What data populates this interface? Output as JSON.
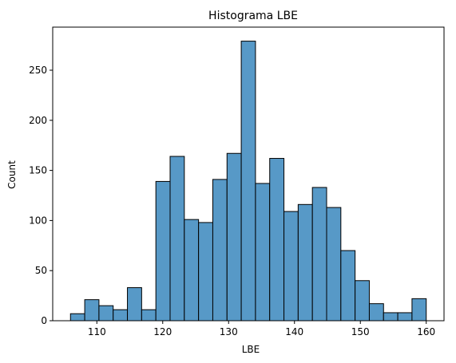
{
  "chart_data": {
    "type": "bar",
    "title": "Histograma LBE",
    "xlabel": "LBE",
    "ylabel": "Count",
    "bin_edges": [
      106,
      108.16,
      110.32,
      112.48,
      114.64,
      116.8,
      118.96,
      121.12,
      123.28,
      125.44,
      127.6,
      129.76,
      131.92,
      134.08,
      136.24,
      138.4,
      140.56,
      142.72,
      144.88,
      147.04,
      149.2,
      151.36,
      153.52,
      155.68,
      157.84,
      160
    ],
    "values": [
      7,
      21,
      15,
      11,
      33,
      11,
      139,
      164,
      101,
      98,
      141,
      167,
      279,
      137,
      162,
      109,
      116,
      133,
      113,
      70,
      40,
      17,
      8,
      8,
      22
    ],
    "xlim": [
      103.3,
      162.7
    ],
    "ylim": [
      0,
      293
    ],
    "x_ticks": [
      110,
      120,
      130,
      140,
      150,
      160
    ],
    "y_ticks": [
      0,
      50,
      100,
      150,
      200,
      250
    ],
    "bar_color": "#5799c7",
    "edge_color": "#000000",
    "grid": false
  }
}
